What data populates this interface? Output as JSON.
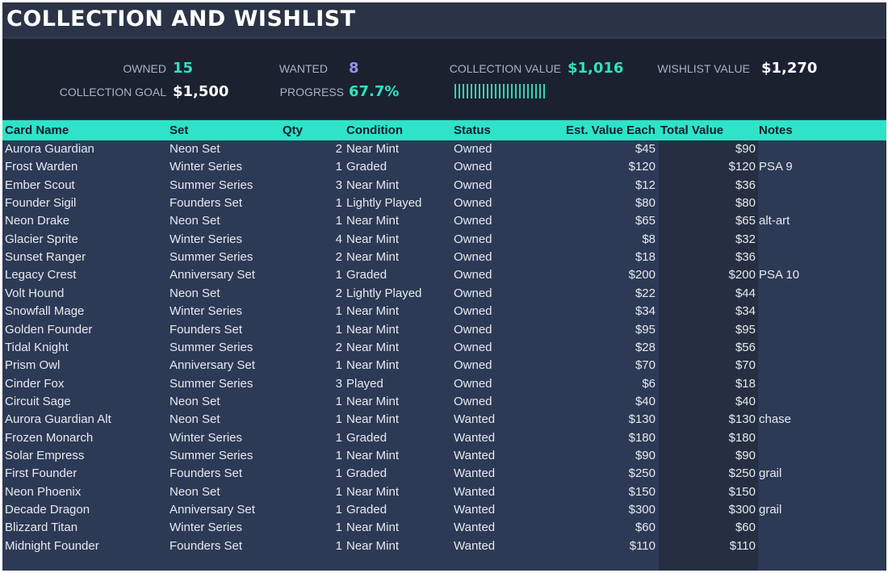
{
  "title": "COLLECTION AND WISHLIST",
  "kpis": {
    "owned_label": "OWNED",
    "owned_value": "15",
    "wanted_label": "WANTED",
    "wanted_value": "8",
    "collection_value_label": "COLLECTION VALUE",
    "collection_value": "$1,016",
    "wishlist_value_label": "WISHLIST VALUE",
    "wishlist_value": "$1,270",
    "goal_label": "COLLECTION GOAL",
    "goal_value": "$1,500",
    "progress_label": "PROGRESS",
    "progress_value": "67.7%",
    "progress_fraction": 0.677
  },
  "columns": [
    "Card Name",
    "Set",
    "Qty",
    "Condition",
    "Status",
    "Est. Value Each",
    "Total Value",
    "Notes"
  ],
  "rows": [
    [
      "Aurora Guardian",
      "Neon Set",
      "2",
      "Near Mint",
      "Owned",
      "$45",
      "$90",
      ""
    ],
    [
      "Frost Warden",
      "Winter Series",
      "1",
      "Graded",
      "Owned",
      "$120",
      "$120",
      "PSA 9"
    ],
    [
      "Ember Scout",
      "Summer Series",
      "3",
      "Near Mint",
      "Owned",
      "$12",
      "$36",
      ""
    ],
    [
      "Founder Sigil",
      "Founders Set",
      "1",
      "Lightly Played",
      "Owned",
      "$80",
      "$80",
      ""
    ],
    [
      "Neon Drake",
      "Neon Set",
      "1",
      "Near Mint",
      "Owned",
      "$65",
      "$65",
      "alt-art"
    ],
    [
      "Glacier Sprite",
      "Winter Series",
      "4",
      "Near Mint",
      "Owned",
      "$8",
      "$32",
      ""
    ],
    [
      "Sunset Ranger",
      "Summer Series",
      "2",
      "Near Mint",
      "Owned",
      "$18",
      "$36",
      ""
    ],
    [
      "Legacy Crest",
      "Anniversary Set",
      "1",
      "Graded",
      "Owned",
      "$200",
      "$200",
      "PSA 10"
    ],
    [
      "Volt Hound",
      "Neon Set",
      "2",
      "Lightly Played",
      "Owned",
      "$22",
      "$44",
      ""
    ],
    [
      "Snowfall Mage",
      "Winter Series",
      "1",
      "Near Mint",
      "Owned",
      "$34",
      "$34",
      ""
    ],
    [
      "Golden Founder",
      "Founders Set",
      "1",
      "Near Mint",
      "Owned",
      "$95",
      "$95",
      ""
    ],
    [
      "Tidal Knight",
      "Summer Series",
      "2",
      "Near Mint",
      "Owned",
      "$28",
      "$56",
      ""
    ],
    [
      "Prism Owl",
      "Anniversary Set",
      "1",
      "Near Mint",
      "Owned",
      "$70",
      "$70",
      ""
    ],
    [
      "Cinder Fox",
      "Summer Series",
      "3",
      "Played",
      "Owned",
      "$6",
      "$18",
      ""
    ],
    [
      "Circuit Sage",
      "Neon Set",
      "1",
      "Near Mint",
      "Owned",
      "$40",
      "$40",
      ""
    ],
    [
      "Aurora Guardian Alt",
      "Neon Set",
      "1",
      "Near Mint",
      "Wanted",
      "$130",
      "$130",
      "chase"
    ],
    [
      "Frozen Monarch",
      "Winter Series",
      "1",
      "Graded",
      "Wanted",
      "$180",
      "$180",
      ""
    ],
    [
      "Solar Empress",
      "Summer Series",
      "1",
      "Near Mint",
      "Wanted",
      "$90",
      "$90",
      ""
    ],
    [
      "First Founder",
      "Founders Set",
      "1",
      "Graded",
      "Wanted",
      "$250",
      "$250",
      "grail"
    ],
    [
      "Neon Phoenix",
      "Neon Set",
      "1",
      "Near Mint",
      "Wanted",
      "$150",
      "$150",
      ""
    ],
    [
      "Decade Dragon",
      "Anniversary Set",
      "1",
      "Graded",
      "Wanted",
      "$300",
      "$300",
      "grail"
    ],
    [
      "Blizzard Titan",
      "Winter Series",
      "1",
      "Near Mint",
      "Wanted",
      "$60",
      "$60",
      ""
    ],
    [
      "Midnight Founder",
      "Founders Set",
      "1",
      "Near Mint",
      "Wanted",
      "$110",
      "$110",
      ""
    ]
  ]
}
